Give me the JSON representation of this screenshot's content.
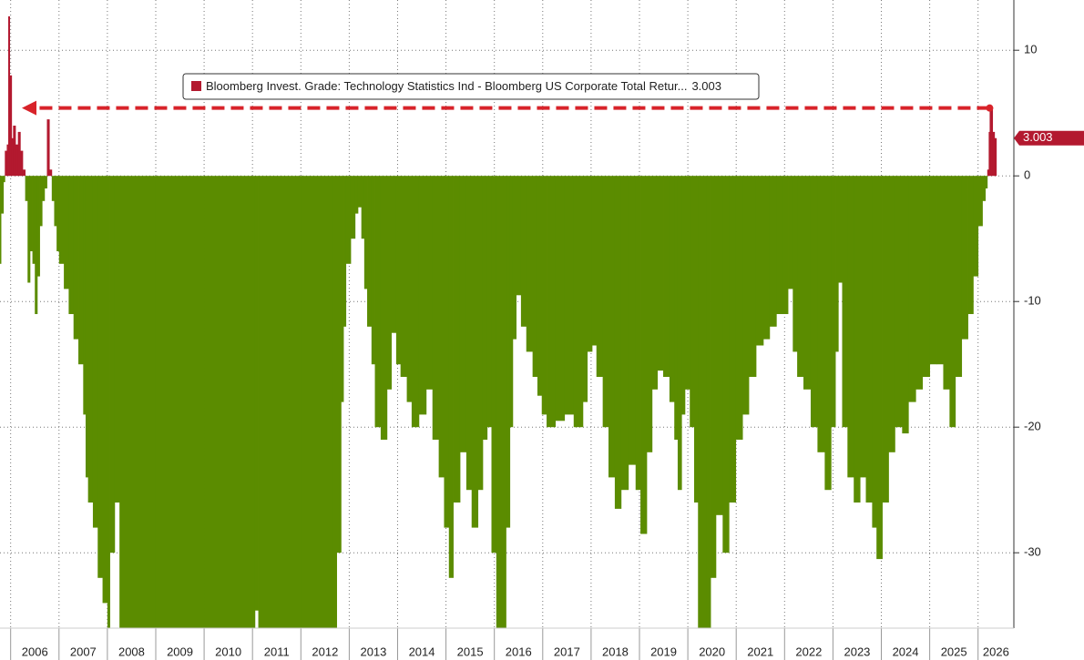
{
  "chart_data": {
    "type": "bar",
    "series": [
      {
        "name": "Bloomberg Invest. Grade: Technology Statistics Ind - Bloomberg US Corporate Total Retur...",
        "color": "#b3192f",
        "negative_color": "#5b8c00",
        "x": [
          2005.77,
          2005.8,
          2005.85,
          2005.88,
          2005.92,
          2005.95,
          2005.98,
          2006.02,
          2006.05,
          2006.1,
          2006.15,
          2006.2,
          2006.25,
          2006.3,
          2006.35,
          2006.4,
          2006.45,
          2006.5,
          2006.55,
          2006.6,
          2006.65,
          2006.7,
          2006.75,
          2006.8,
          2006.85,
          2006.9,
          2006.95,
          2007.0,
          2007.1,
          2007.2,
          2007.3,
          2007.4,
          2007.5,
          2007.55,
          2007.6,
          2007.7,
          2007.8,
          2007.9,
          2008.0,
          2008.05,
          2008.15,
          2008.25,
          2009.0,
          2010.0,
          2011.0,
          2011.05,
          2011.12,
          2012.0,
          2012.65,
          2012.74,
          2012.83,
          2012.88,
          2012.93,
          2013.03,
          2013.12,
          2013.18,
          2013.25,
          2013.31,
          2013.37,
          2013.46,
          2013.53,
          2013.65,
          2013.78,
          2013.87,
          2013.97,
          2014.06,
          2014.19,
          2014.29,
          2014.44,
          2014.59,
          2014.72,
          2014.85,
          2014.96,
          2015.06,
          2015.15,
          2015.29,
          2015.42,
          2015.53,
          2015.66,
          2015.76,
          2015.85,
          2015.94,
          2016.04,
          2016.17,
          2016.24,
          2016.32,
          2016.38,
          2016.45,
          2016.55,
          2016.66,
          2016.79,
          2016.89,
          2016.98,
          2017.08,
          2017.26,
          2017.45,
          2017.64,
          2017.83,
          2017.92,
          2018.02,
          2018.11,
          2018.24,
          2018.36,
          2018.49,
          2018.62,
          2018.77,
          2018.92,
          2019.02,
          2019.15,
          2019.26,
          2019.37,
          2019.49,
          2019.62,
          2019.72,
          2019.79,
          2019.87,
          2019.94,
          2020.04,
          2020.13,
          2020.21,
          2020.38,
          2020.47,
          2020.58,
          2020.72,
          2020.85,
          2020.99,
          2021.13,
          2021.26,
          2021.41,
          2021.56,
          2021.69,
          2021.83,
          2021.94,
          2022.07,
          2022.17,
          2022.26,
          2022.39,
          2022.54,
          2022.68,
          2022.83,
          2022.96,
          2023.05,
          2023.11,
          2023.19,
          2023.3,
          2023.43,
          2023.56,
          2023.68,
          2023.81,
          2023.9,
          2024.02,
          2024.15,
          2024.28,
          2024.43,
          2024.56,
          2024.71,
          2024.85,
          2025.0,
          2025.15,
          2025.28,
          2025.41,
          2025.53,
          2025.66,
          2025.79,
          2025.9,
          2026.0,
          2026.09,
          2026.15,
          2026.19,
          2026.22,
          2026.24,
          2026.3,
          2026.34
        ],
        "values": [
          -7,
          -3,
          -0.5,
          2,
          2.5,
          12.7,
          8,
          3,
          4,
          2.5,
          3.5,
          2,
          0.5,
          -2,
          -8.5,
          -6,
          -7,
          -11,
          -8,
          -4,
          -2,
          -1,
          4.5,
          0.5,
          -2,
          -4,
          -6,
          -7,
          -9,
          -11,
          -13,
          -15,
          -19,
          -24,
          -26,
          -28,
          -32,
          -34,
          -36,
          -30,
          -26,
          -36,
          -36,
          -36,
          -36,
          -34.6,
          -36,
          -36,
          -36,
          -30,
          -18,
          -12,
          -7,
          -5,
          -3,
          -2.5,
          -5,
          -9,
          -12,
          -15,
          -20,
          -21,
          -17,
          -12.5,
          -15,
          -16,
          -18,
          -20,
          -19,
          -17,
          -21,
          -24,
          -28,
          -32,
          -26,
          -22,
          -25,
          -28,
          -25,
          -21,
          -20,
          -30,
          -36,
          -36,
          -28,
          -20,
          -13,
          -9.5,
          -12,
          -14,
          -16,
          -17.5,
          -19,
          -20,
          -19.5,
          -19,
          -20,
          -18,
          -14,
          -13.5,
          -16,
          -20,
          -24,
          -26.5,
          -25,
          -23,
          -25,
          -28.5,
          -22,
          -17,
          -15.5,
          -16,
          -18,
          -21,
          -25,
          -19,
          -17,
          -20,
          -26,
          -36,
          -36,
          -32,
          -27,
          -30,
          -26,
          -21,
          -19,
          -16,
          -13.5,
          -13,
          -12,
          -11,
          -11,
          -9,
          -14,
          -16,
          -17,
          -20,
          -22,
          -25,
          -20,
          -14,
          -8.5,
          -20,
          -24,
          -26,
          -24,
          -26,
          -28,
          -30.5,
          -26,
          -22,
          -20,
          -20.5,
          -18,
          -17,
          -16,
          -15,
          -15,
          -17,
          -20,
          -16,
          -13,
          -11,
          -8,
          -4,
          -2,
          -1,
          0.5,
          3.5,
          5.4,
          3.5,
          3.003
        ]
      }
    ],
    "xlim": [
      2005.78,
      2026.74
    ],
    "xticks": [
      {
        "value": 2006,
        "label": "2006"
      },
      {
        "value": 2007,
        "label": "2007"
      },
      {
        "value": 2008,
        "label": "2008"
      },
      {
        "value": 2009,
        "label": "2009"
      },
      {
        "value": 2010,
        "label": "2010"
      },
      {
        "value": 2011,
        "label": "2011"
      },
      {
        "value": 2012,
        "label": "2012"
      },
      {
        "value": 2013,
        "label": "2013"
      },
      {
        "value": 2014,
        "label": "2014"
      },
      {
        "value": 2015,
        "label": "2015"
      },
      {
        "value": 2016,
        "label": "2016"
      },
      {
        "value": 2017,
        "label": "2017"
      },
      {
        "value": 2018,
        "label": "2018"
      },
      {
        "value": 2019,
        "label": "2019"
      },
      {
        "value": 2020,
        "label": "2020"
      },
      {
        "value": 2021,
        "label": "2021"
      },
      {
        "value": 2022,
        "label": "2022"
      },
      {
        "value": 2023,
        "label": "2023"
      },
      {
        "value": 2024,
        "label": "2024"
      },
      {
        "value": 2025,
        "label": "2025"
      },
      {
        "value": 2026,
        "label": "2026"
      }
    ],
    "ylim": [
      -36,
      14
    ],
    "yticks": [
      -30,
      -20,
      -10,
      0,
      10
    ],
    "grid": true
  }
}
